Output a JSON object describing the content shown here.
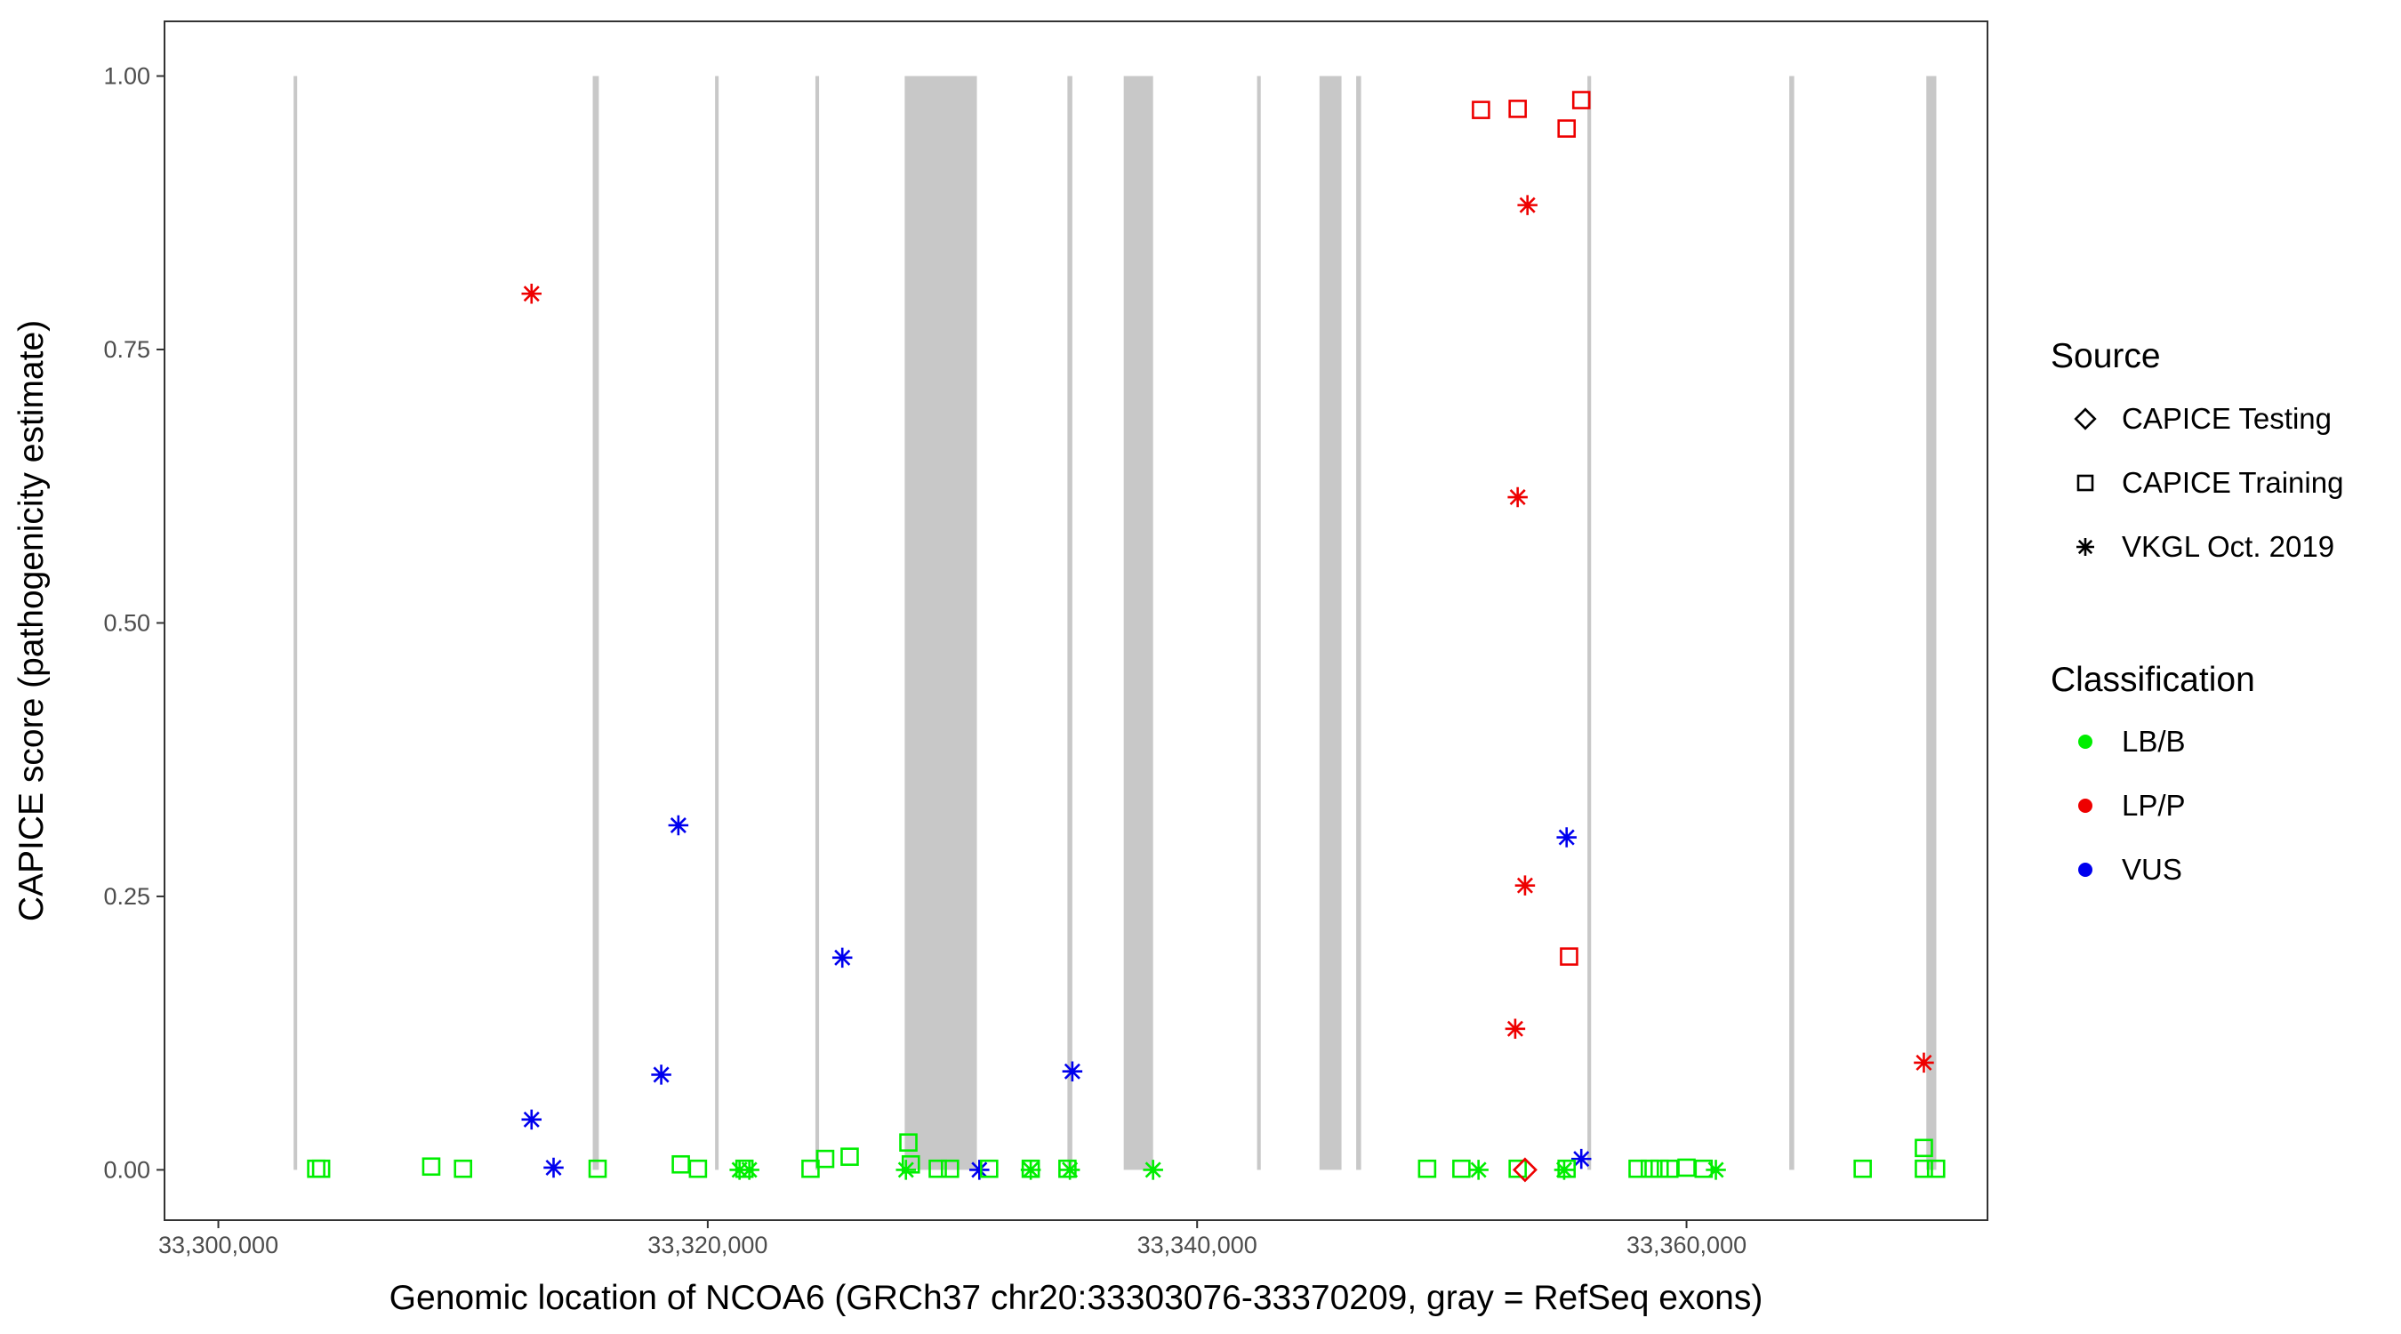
{
  "chart_data": {
    "type": "scatter",
    "xlabel": "Genomic location of NCOA6 (GRCh37 chr20:33303076-33370209, gray = RefSeq exons)",
    "ylabel": "CAPICE score (pathogenicity estimate)",
    "xlim": [
      33297800,
      33372300
    ],
    "ylim": [
      -0.046,
      1.05
    ],
    "x_ticks": [
      33300000,
      33320000,
      33340000,
      33360000
    ],
    "x_tick_labels": [
      "33,300,000",
      "33,320,000",
      "33,340,000",
      "33,360,000"
    ],
    "y_ticks": [
      0,
      0.25,
      0.5,
      0.75,
      1
    ],
    "y_tick_labels": [
      "0.00",
      "0.25",
      "0.50",
      "0.75",
      "1.00"
    ],
    "grid": false,
    "exon_color": "#c8c8c8",
    "exons": [
      [
        33303076,
        33303200
      ],
      [
        33315300,
        33315550
      ],
      [
        33320300,
        33320400
      ],
      [
        33324400,
        33324550
      ],
      [
        33328050,
        33331000
      ],
      [
        33334700,
        33334900
      ],
      [
        33337000,
        33338200
      ],
      [
        33342450,
        33342600
      ],
      [
        33345000,
        33345900
      ],
      [
        33346500,
        33346700
      ],
      [
        33355950,
        33356100
      ],
      [
        33364200,
        33364400
      ],
      [
        33369800,
        33370209
      ]
    ],
    "legend": {
      "placement": "right",
      "source_title": "Source",
      "source_items": [
        {
          "label": "CAPICE Testing",
          "shape": "diamond"
        },
        {
          "label": "CAPICE Training",
          "shape": "square"
        },
        {
          "label": "VKGL Oct. 2019",
          "shape": "star"
        }
      ],
      "class_title": "Classification",
      "class_items": [
        {
          "label": "LB/B",
          "color": "#00ee00"
        },
        {
          "label": "LP/P",
          "color": "#ee0000"
        },
        {
          "label": "VUS",
          "color": "#0000ee"
        }
      ]
    },
    "series": [
      {
        "source": "CAPICE Training",
        "classification": "LP/P",
        "shape": "square",
        "color": "#ee0000",
        "points": [
          [
            33351600,
            0.969
          ],
          [
            33353100,
            0.97
          ],
          [
            33355100,
            0.952
          ],
          [
            33355700,
            0.978
          ],
          [
            33355200,
            0.195
          ]
        ]
      },
      {
        "source": "VKGL Oct. 2019",
        "classification": "LP/P",
        "shape": "star",
        "color": "#ee0000",
        "points": [
          [
            33312800,
            0.801
          ],
          [
            33353500,
            0.882
          ],
          [
            33353100,
            0.615
          ],
          [
            33353400,
            0.26
          ],
          [
            33353000,
            0.129
          ],
          [
            33369700,
            0.098
          ]
        ]
      },
      {
        "source": "VKGL Oct. 2019",
        "classification": "VUS",
        "shape": "star",
        "color": "#0000ee",
        "points": [
          [
            33318800,
            0.315
          ],
          [
            33325500,
            0.194
          ],
          [
            33318100,
            0.087
          ],
          [
            33334900,
            0.09
          ],
          [
            33312800,
            0.046
          ],
          [
            33355100,
            0.304
          ],
          [
            33313700,
            0.002
          ],
          [
            33331100,
            0.0
          ],
          [
            33355700,
            0.01
          ]
        ]
      },
      {
        "source": "CAPICE Training",
        "classification": "LB/B",
        "shape": "square",
        "color": "#00ee00",
        "points": [
          [
            33304000,
            0.001
          ],
          [
            33304200,
            0.001
          ],
          [
            33308700,
            0.003
          ],
          [
            33310000,
            0.001
          ],
          [
            33315500,
            0.001
          ],
          [
            33318900,
            0.005
          ],
          [
            33319600,
            0.001
          ],
          [
            33321500,
            0.001
          ],
          [
            33324200,
            0.001
          ],
          [
            33324800,
            0.01
          ],
          [
            33325800,
            0.012
          ],
          [
            33328200,
            0.025
          ],
          [
            33328300,
            0.005
          ],
          [
            33329400,
            0.001
          ],
          [
            33329900,
            0.001
          ],
          [
            33331500,
            0.001
          ],
          [
            33333200,
            0.001
          ],
          [
            33334700,
            0.001
          ],
          [
            33349400,
            0.001
          ],
          [
            33350800,
            0.001
          ],
          [
            33353100,
            0.001
          ],
          [
            33355100,
            0.001
          ],
          [
            33358000,
            0.001
          ],
          [
            33358500,
            0.001
          ],
          [
            33358900,
            0.001
          ],
          [
            33359300,
            0.001
          ],
          [
            33360000,
            0.002
          ],
          [
            33360700,
            0.001
          ],
          [
            33367200,
            0.001
          ],
          [
            33369700,
            0.02
          ],
          [
            33369700,
            0.001
          ],
          [
            33370200,
            0.001
          ]
        ]
      },
      {
        "source": "VKGL Oct. 2019",
        "classification": "LB/B",
        "shape": "star",
        "color": "#00ee00",
        "points": [
          [
            33321300,
            0.0
          ],
          [
            33321700,
            0.0
          ],
          [
            33328100,
            0.0
          ],
          [
            33333200,
            0.0
          ],
          [
            33334800,
            0.0
          ],
          [
            33338200,
            0.0
          ],
          [
            33351500,
            0.0
          ],
          [
            33355000,
            0.0
          ],
          [
            33361200,
            0.0
          ]
        ]
      },
      {
        "source": "CAPICE Testing",
        "classification": "LP/P",
        "shape": "diamond",
        "color": "#ee0000",
        "points": [
          [
            33353400,
            0.0
          ]
        ]
      }
    ]
  }
}
